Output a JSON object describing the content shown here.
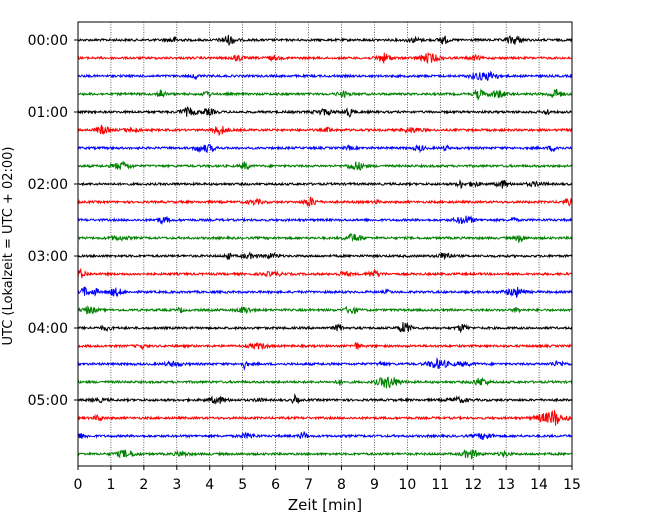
{
  "chart_data": {
    "type": "line",
    "title": "",
    "xlabel": "Zeit  [min]",
    "ylabel": "UTC (Lokalzeit = UTC + 02:00)",
    "xlim": [
      0,
      15
    ],
    "xticks": [
      "0",
      "1",
      "2",
      "3",
      "4",
      "5",
      "6",
      "7",
      "8",
      "9",
      "10",
      "11",
      "12",
      "13",
      "14",
      "15"
    ],
    "ytick_labels": [
      "00:00",
      "01:00",
      "02:00",
      "03:00",
      "04:00",
      "05:00"
    ],
    "traces_per_hour": 4,
    "trace_minutes": 15,
    "trace_count": 24,
    "trace_colors": [
      "#000000",
      "#ff0000",
      "#0000ff",
      "#008000"
    ],
    "grid": "vertical dotted lines at each minute"
  }
}
